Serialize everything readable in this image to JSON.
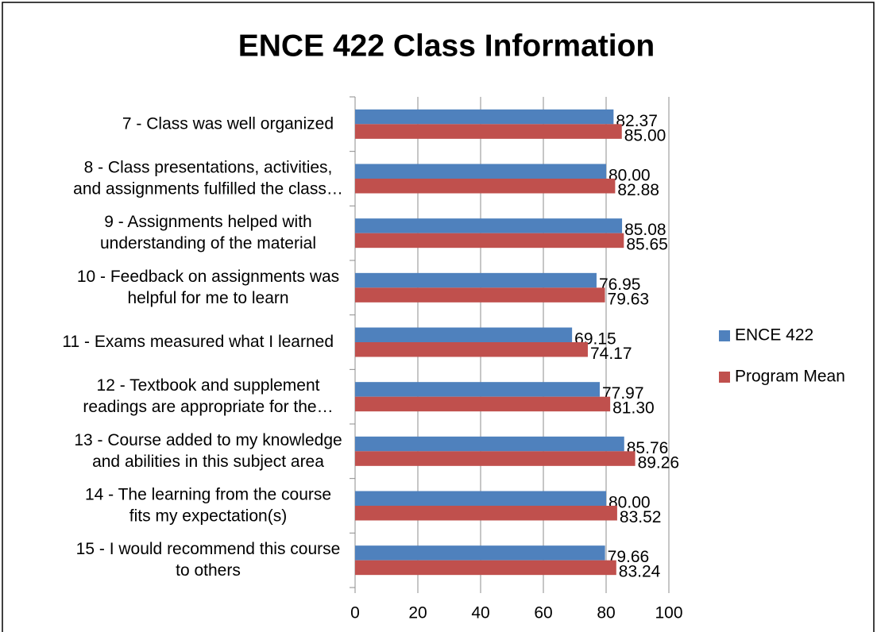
{
  "chart_data": {
    "type": "bar",
    "orientation": "horizontal",
    "title": "ENCE 422 Class Information",
    "categories": [
      "7 - Class was well organized",
      "8 - Class presentations, activities,\nand assignments fulfilled the class…",
      "9 - Assignments helped with\nunderstanding of the material",
      "10 - Feedback on assignments was\nhelpful for me to learn",
      "11 - Exams measured what I learned",
      "12 - Textbook and supplement\nreadings are appropriate for the…",
      "13 - Course added to my knowledge\nand abilities in this subject area",
      "14 - The learning from the course\nfits my expectation(s)",
      "15 - I would recommend this course\nto others"
    ],
    "series": [
      {
        "name": "ENCE 422",
        "color": "#4f81bd",
        "values": [
          82.37,
          80,
          85.08,
          76.95,
          69.15,
          77.97,
          85.76,
          80,
          79.66
        ],
        "value_labels": [
          "82.37",
          "80.00",
          "85.08",
          "76.95",
          "69.15",
          "77.97",
          "85.76",
          "80.00",
          "79.66"
        ]
      },
      {
        "name": "Program Mean",
        "color": "#c0504d",
        "values": [
          85,
          82.88,
          85.65,
          79.63,
          74.17,
          81.3,
          89.26,
          83.52,
          83.24
        ],
        "value_labels": [
          "85.00",
          "82.88",
          "85.65",
          "79.63",
          "74.17",
          "81.30",
          "89.26",
          "83.52",
          "83.24"
        ]
      }
    ],
    "xlim": [
      0,
      100
    ],
    "xticks": [
      0,
      20,
      40,
      60,
      80,
      100
    ],
    "grid": true,
    "legend": "right"
  }
}
